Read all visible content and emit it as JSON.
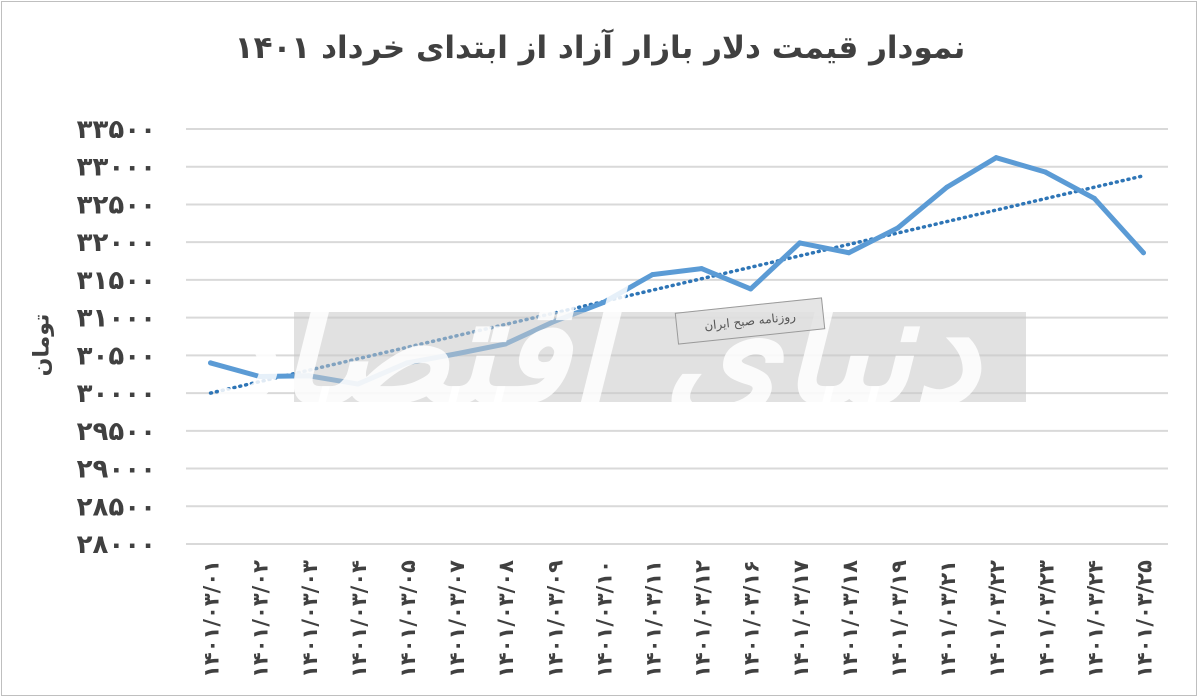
{
  "chart_data": {
    "type": "line",
    "title": "نمودار قیمت دلار بازار آزاد از ابتدای خرداد ۱۴۰۱",
    "ylabel": "تومان",
    "xlabel": "",
    "ylim": [
      28000,
      33500
    ],
    "yticks": [
      28000,
      28500,
      29000,
      29500,
      30000,
      30500,
      31000,
      31500,
      32000,
      32500,
      33000,
      33500
    ],
    "ytick_labels": [
      "۲۸۰۰۰",
      "۲۸۵۰۰",
      "۲۹۰۰۰",
      "۲۹۵۰۰",
      "۳۰۰۰۰",
      "۳۰۵۰۰",
      "۳۱۰۰۰",
      "۳۱۵۰۰",
      "۳۲۰۰۰",
      "۳۲۵۰۰",
      "۳۳۰۰۰",
      "۳۳۵۰۰"
    ],
    "categories": [
      "۱۴۰۱/۰۳/۰۱",
      "۱۴۰۱/۰۳/۰۲",
      "۱۴۰۱/۰۳/۰۳",
      "۱۴۰۱/۰۳/۰۴",
      "۱۴۰۱/۰۳/۰۵",
      "۱۴۰۱/۰۳/۰۷",
      "۱۴۰۱/۰۳/۰۸",
      "۱۴۰۱/۰۳/۰۹",
      "۱۴۰۱/۰۳/۱۰",
      "۱۴۰۱/۰۳/۱۱",
      "۱۴۰۱/۰۳/۱۲",
      "۱۴۰۱/۰۳/۱۶",
      "۱۴۰۱/۰۳/۱۷",
      "۱۴۰۱/۰۳/۱۸",
      "۱۴۰۱/۰۳/۱۹",
      "۱۴۰۱/۰۳/۲۱",
      "۱۴۰۱/۰۳/۲۲",
      "۱۴۰۱/۰۳/۲۳",
      "۱۴۰۱/۰۳/۲۴",
      "۱۴۰۱/۰۳/۲۵"
    ],
    "series": [
      {
        "values": [
          30400,
          30220,
          30230,
          30120,
          30400,
          30520,
          30650,
          30950,
          31200,
          31570,
          31650,
          31380,
          31990,
          31860,
          32190,
          32730,
          33120,
          32930,
          32580,
          31860
        ]
      }
    ],
    "trendline": {
      "style": "dotted",
      "start": 30000,
      "end": 32880
    },
    "grid": true,
    "legend": "none",
    "colors": {
      "line": "#5b9bd5",
      "trend": "#2e75b6",
      "grid": "#d9d9d9",
      "text": "#404040"
    }
  },
  "watermark": {
    "logo_text": "دنیای اقتصاد",
    "tagline": "روزنامه صبح ایران"
  }
}
